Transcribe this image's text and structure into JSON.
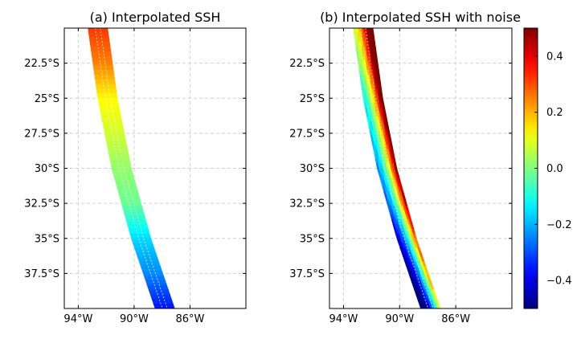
{
  "chart_data": [
    {
      "type": "heatmap",
      "title": "(a) Interpolated SSH",
      "xlabel": "",
      "ylabel": "",
      "xlim": [
        -95,
        -82
      ],
      "ylim": [
        -40,
        -20
      ],
      "xticks": [
        -94,
        -90,
        -86
      ],
      "xtick_labels": [
        "94°W",
        "90°W",
        "86°W"
      ],
      "yticks": [
        -22.5,
        -25,
        -27.5,
        -30,
        -32.5,
        -35,
        -37.5
      ],
      "ytick_labels": [
        "22.5°S",
        "25°S",
        "27.5°S",
        "30°S",
        "32.5°S",
        "35°S",
        "37.5°S"
      ],
      "grid": true,
      "colormap": "jet",
      "swath": {
        "track": [
          {
            "lat": -20,
            "lon": -92.6
          },
          {
            "lat": -25,
            "lon": -91.9
          },
          {
            "lat": -30,
            "lon": -90.9
          },
          {
            "lat": -35,
            "lon": -89.5
          },
          {
            "lat": -40,
            "lon": -87.8
          }
        ],
        "half_width_deg_lon": 0.7,
        "values_along_track": [
          {
            "lat": -20,
            "value": 0.32
          },
          {
            "lat": -22.5,
            "value": 0.25
          },
          {
            "lat": -25,
            "value": 0.13
          },
          {
            "lat": -27.5,
            "value": 0.08
          },
          {
            "lat": -30,
            "value": 0.02
          },
          {
            "lat": -32.5,
            "value": -0.02
          },
          {
            "lat": -35,
            "value": -0.16
          },
          {
            "lat": -37.5,
            "value": -0.24
          },
          {
            "lat": -40,
            "value": -0.36
          }
        ]
      }
    },
    {
      "type": "heatmap",
      "title": "(b) Interpolated SSH with noise",
      "xlabel": "",
      "ylabel": "",
      "xlim": [
        -95,
        -82
      ],
      "ylim": [
        -40,
        -20
      ],
      "xticks": [
        -94,
        -90,
        -86
      ],
      "xtick_labels": [
        "94°W",
        "90°W",
        "86°W"
      ],
      "yticks": [
        -22.5,
        -25,
        -27.5,
        -30,
        -32.5,
        -35,
        -37.5
      ],
      "ytick_labels": [
        "22.5°S",
        "25°S",
        "27.5°S",
        "30°S",
        "32.5°S",
        "35°S",
        "37.5°S"
      ],
      "grid": true,
      "colormap": "jet",
      "swath": {
        "track": [
          {
            "lat": -20,
            "lon": -92.6
          },
          {
            "lat": -25,
            "lon": -91.9
          },
          {
            "lat": -30,
            "lon": -90.9
          },
          {
            "lat": -35,
            "lon": -89.5
          },
          {
            "lat": -40,
            "lon": -87.8
          }
        ],
        "half_width_deg_lon": 0.7,
        "values_along_track": [
          {
            "lat": -20,
            "value": 0.32
          },
          {
            "lat": -22.5,
            "value": 0.25
          },
          {
            "lat": -25,
            "value": 0.13
          },
          {
            "lat": -27.5,
            "value": 0.08
          },
          {
            "lat": -30,
            "value": 0.02
          },
          {
            "lat": -32.5,
            "value": -0.02
          },
          {
            "lat": -35,
            "value": -0.16
          },
          {
            "lat": -37.5,
            "value": -0.24
          },
          {
            "lat": -40,
            "value": -0.36
          }
        ],
        "noise_cross_track_gradient": [
          -0.25,
          0.5
        ]
      }
    }
  ],
  "colorbar": {
    "colormap": "jet",
    "range": [
      -0.5,
      0.5
    ],
    "ticks": [
      0.4,
      0.2,
      0.0,
      -0.2,
      -0.4
    ],
    "tick_labels": [
      "0.4",
      "0.2",
      "0.0",
      "−0.2",
      "−0.4"
    ]
  }
}
